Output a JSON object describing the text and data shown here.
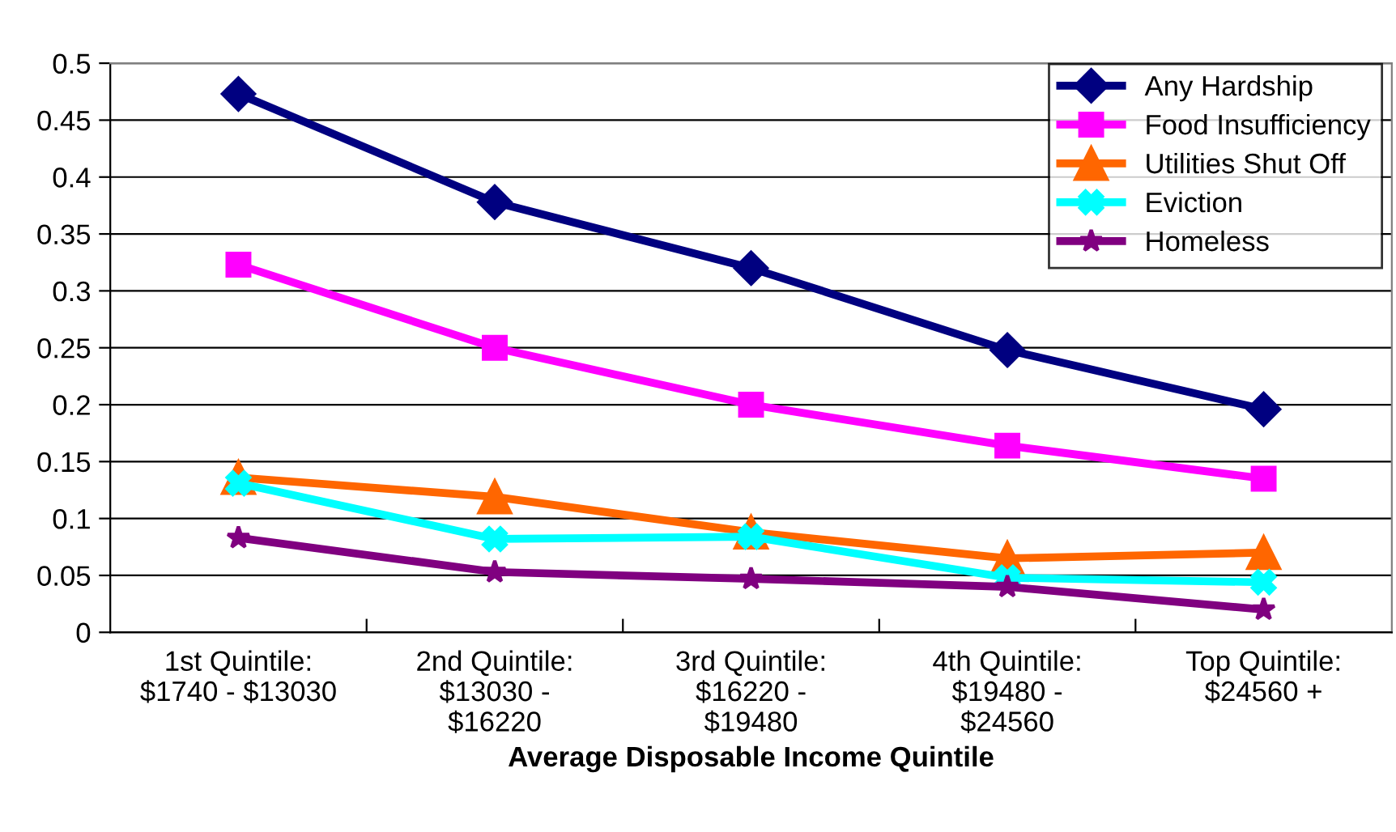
{
  "chart_data": {
    "type": "line",
    "xlabel": "Average Disposable Income Quintile",
    "categories": [
      "1st Quintile:\n$1740 - $13030",
      "2nd Quintile:\n$13030 -\n$16220",
      "3rd Quintile:\n$16220 -\n$19480",
      "4th Quintile:\n$19480 -\n$24560",
      "Top Quintile:\n$24560 +"
    ],
    "series": [
      {
        "name": "Any Hardship",
        "color": "#000080",
        "marker": "diamond",
        "values": [
          0.473,
          0.378,
          0.32,
          0.248,
          0.196
        ]
      },
      {
        "name": "Food Insufficiency",
        "color": "#ff00ff",
        "marker": "square",
        "values": [
          0.323,
          0.25,
          0.2,
          0.164,
          0.135
        ]
      },
      {
        "name": "Utilities Shut Off",
        "color": "#ff6600",
        "marker": "triangle",
        "values": [
          0.136,
          0.119,
          0.088,
          0.065,
          0.07
        ]
      },
      {
        "name": "Eviction",
        "color": "#00ffff",
        "marker": "cross",
        "values": [
          0.131,
          0.082,
          0.084,
          0.048,
          0.044
        ]
      },
      {
        "name": "Homeless",
        "color": "#800080",
        "marker": "star",
        "values": [
          0.083,
          0.053,
          0.047,
          0.04,
          0.02
        ]
      }
    ],
    "ylim": [
      0,
      0.5
    ],
    "yticks": [
      0,
      0.05,
      0.1,
      0.15,
      0.2,
      0.25,
      0.3,
      0.35,
      0.4,
      0.45,
      0.5
    ],
    "grid": "y",
    "legend": "top right",
    "line_style": "solid"
  }
}
